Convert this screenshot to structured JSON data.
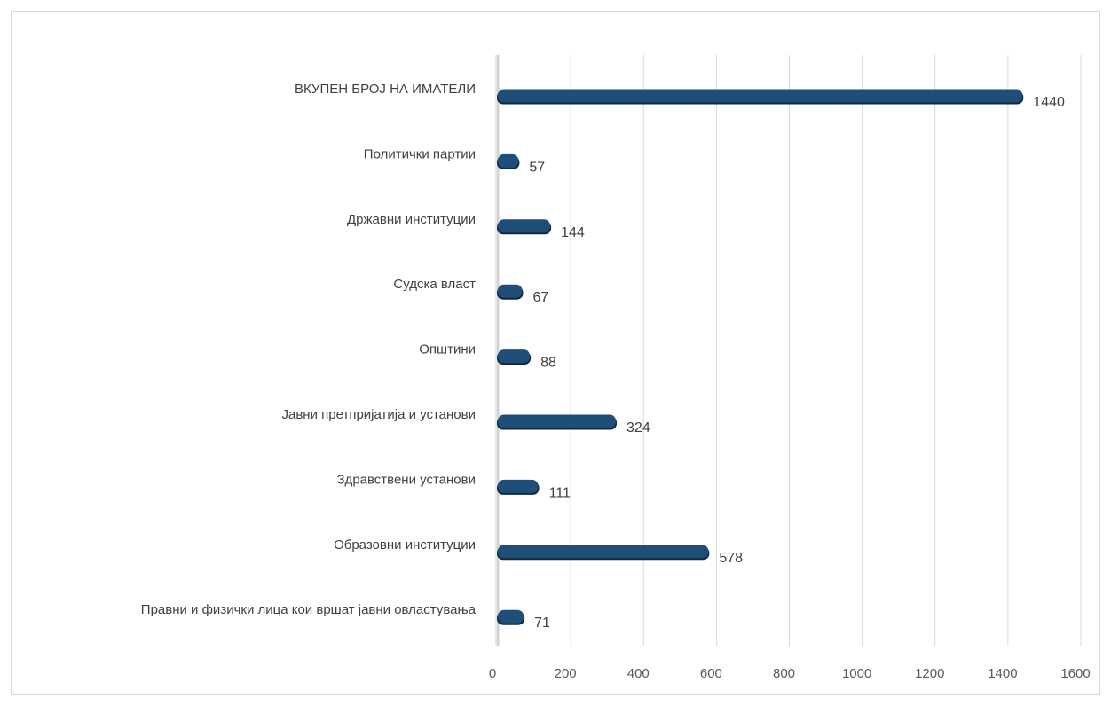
{
  "chart_data": {
    "type": "bar",
    "orientation": "horizontal",
    "categories": [
      "ВКУПЕН БРОЈ НА ИМАТЕЛИ",
      "Политички партии",
      "Државни институции",
      "Судска власт",
      "Општини",
      "Јавни претпријатија и установи",
      "Здравствени установи",
      "Образовни институции",
      "Правни и физички лица кои вршат јавни овластувања"
    ],
    "values": [
      1440,
      57,
      144,
      67,
      88,
      324,
      111,
      578,
      71
    ],
    "data_labels": [
      "1440",
      "57",
      "144",
      "67",
      "88",
      "324",
      "111",
      "578",
      "71"
    ],
    "xlim": [
      0,
      1600
    ],
    "x_ticks": [
      "0",
      "200",
      "400",
      "600",
      "800",
      "1000",
      "1200",
      "1400",
      "1600"
    ],
    "grid": true,
    "legend": "none",
    "bar_color": "#1f4e79",
    "grid_color": "#d9d9d9",
    "title": "",
    "xlabel": "",
    "ylabel": ""
  }
}
